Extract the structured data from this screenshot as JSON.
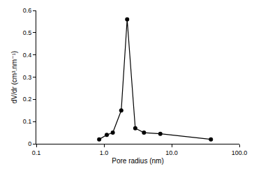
{
  "chart_data": {
    "type": "line",
    "x_label": "Pore radius (nm)",
    "y_label": "dV/dr (cm³.nm⁻¹)",
    "x": [
      0.85,
      1.1,
      1.35,
      1.8,
      2.2,
      2.9,
      3.9,
      6.8,
      38
    ],
    "values": [
      0.02,
      0.04,
      0.05,
      0.15,
      0.56,
      0.07,
      0.05,
      0.045,
      0.02
    ],
    "color": "#000000",
    "marker": "circle",
    "line_style": "solid",
    "log": "x",
    "grid": false,
    "xlim": [
      0.1,
      100
    ],
    "xticks": [
      0.1,
      {
        "value": 1,
        "label": "1.0"
      },
      {
        "value": 10,
        "label": "10.0"
      },
      {
        "value": 100,
        "label": "100.0"
      }
    ],
    "ylim": [
      0,
      0.6
    ],
    "yticks": [
      0,
      0.1,
      0.2,
      0.3,
      0.4,
      0.5,
      0.6
    ]
  }
}
